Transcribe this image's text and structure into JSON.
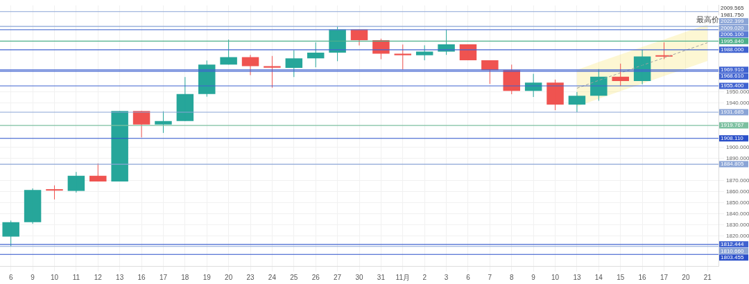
{
  "chart_data": {
    "type": "candlestick",
    "categories": [
      "6",
      "9",
      "10",
      "11",
      "12",
      "13",
      "16",
      "17",
      "18",
      "19",
      "20",
      "23",
      "24",
      "25",
      "26",
      "27",
      "30",
      "31",
      "11月",
      "2",
      "3",
      "6",
      "7",
      "8",
      "9",
      "10",
      "13",
      "14",
      "15",
      "16",
      "17",
      "20",
      "21"
    ],
    "ohlc": [
      [
        1819.5,
        1834,
        1810.7,
        1832.5
      ],
      [
        1832.5,
        1863,
        1831,
        1861.5
      ],
      [
        1862,
        1865.7,
        1853,
        1861
      ],
      [
        1860.7,
        1877.8,
        1859.2,
        1874.4
      ],
      [
        1874.4,
        1885.5,
        1869.2,
        1869.2
      ],
      [
        1869.2,
        1932.8,
        1869.2,
        1932.8
      ],
      [
        1932.8,
        1933,
        1909,
        1920.6
      ],
      [
        1920.6,
        1932.5,
        1913,
        1923.7
      ],
      [
        1923.7,
        1963.4,
        1923.7,
        1948.1
      ],
      [
        1948.1,
        1978.3,
        1945.7,
        1974.6
      ],
      [
        1974.6,
        1997.2,
        1974.6,
        1981.4
      ],
      [
        1981.4,
        1983.4,
        1965.1,
        1973.2
      ],
      [
        1973.2,
        1982.4,
        1953.8,
        1971.8
      ],
      [
        1971.6,
        1987.5,
        1963.4,
        1980.3
      ],
      [
        1980.3,
        1994.7,
        1972.2,
        1985.4
      ],
      [
        1985.4,
        2009,
        1977.7,
        2006.4
      ],
      [
        2006.4,
        2006.4,
        1991.9,
        1996.6
      ],
      [
        1996.6,
        1998,
        1979.5,
        1984.4
      ],
      [
        1984.4,
        1992.7,
        1970.2,
        1983
      ],
      [
        1983,
        1992,
        1978.5,
        1986.4
      ],
      [
        1986.4,
        2006.1,
        1983.4,
        1992.9
      ],
      [
        1992.9,
        1992.9,
        1978.5,
        1978.5
      ],
      [
        1978.5,
        1978.5,
        1957.2,
        1969.6
      ],
      [
        1969.6,
        1974.6,
        1947.9,
        1950.9
      ],
      [
        1950.9,
        1966.3,
        1945.4,
        1958.4
      ],
      [
        1958.4,
        1961.1,
        1933.5,
        1938.6
      ],
      [
        1938.6,
        1949.9,
        1931.7,
        1946.5
      ],
      [
        1946.5,
        1970.6,
        1942,
        1963.7
      ],
      [
        1963.7,
        1975.5,
        1955.4,
        1959.8
      ],
      [
        1959.8,
        1988,
        1956.8,
        1982
      ],
      [
        1983,
        1994.7,
        1979.5,
        1981.75
      ],
      null,
      null
    ],
    "colors": [
      "#26a69a",
      "#26a69a",
      "#ef5350",
      "#26a69a",
      "#ef5350",
      "#26a69a",
      "#ef5350",
      "#26a69a",
      "#26a69a",
      "#26a69a",
      "#26a69a",
      "#ef5350",
      "#ef5350",
      "#26a69a",
      "#26a69a",
      "#26a69a",
      "#ef5350",
      "#ef5350",
      "#ef5350",
      "#26a69a",
      "#26a69a",
      "#ef5350",
      "#ef5350",
      "#ef5350",
      "#26a69a",
      "#ef5350",
      "#26a69a",
      "#26a69a",
      "#ef5350",
      "#26a69a",
      "#ef5350",
      null,
      null
    ],
    "series": [
      {
        "type": "line",
        "color": "#a0a0a0",
        "line_style": "dashed",
        "values": [
          null,
          null,
          null,
          null,
          null,
          null,
          null,
          null,
          null,
          null,
          null,
          null,
          null,
          null,
          null,
          null,
          null,
          null,
          null,
          null,
          null,
          null,
          null,
          null,
          null,
          null,
          1953.3,
          1960.4,
          1967.2,
          1974,
          1980.8,
          1987.6,
          1994.4
        ],
        "lower": [
          null,
          null,
          null,
          null,
          null,
          null,
          null,
          null,
          null,
          null,
          null,
          null,
          null,
          null,
          null,
          null,
          null,
          null,
          null,
          null,
          null,
          null,
          null,
          null,
          null,
          null,
          1936.8,
          1943.9,
          1950.7,
          1957.5,
          1964.3,
          1971.1,
          1977.9
        ],
        "upper": [
          null,
          null,
          null,
          null,
          null,
          null,
          null,
          null,
          null,
          null,
          null,
          null,
          null,
          null,
          null,
          null,
          null,
          null,
          null,
          null,
          null,
          null,
          null,
          null,
          null,
          null,
          1969.8,
          1976.9,
          1983.7,
          1990.5,
          1997.3,
          2004.1,
          2010.9
        ]
      }
    ],
    "ylim": [
      1793,
      2028
    ],
    "yticks": [
      {
        "value": 1820,
        "label": "1820.000"
      },
      {
        "value": 1830,
        "label": "1830.000"
      },
      {
        "value": 1840,
        "label": "1840.000"
      },
      {
        "value": 1850,
        "label": "1850.000"
      },
      {
        "value": 1860,
        "label": "1860.000"
      },
      {
        "value": 1870,
        "label": "1870.000"
      },
      {
        "value": 1890,
        "label": "1890.000"
      },
      {
        "value": 1900,
        "label": "1900.000"
      },
      {
        "value": 1940,
        "label": "1940.000"
      },
      {
        "value": 1950,
        "label": "1950.000"
      }
    ],
    "grid": true,
    "ref_lines": [
      {
        "axis": "y",
        "value": 2022.399,
        "label": "2022.399",
        "color": "#8aa4d6"
      },
      {
        "axis": "y",
        "value": 2009.02,
        "label": "2009.020",
        "color": "#8aa4d6"
      },
      {
        "axis": "y",
        "value": 2006.1,
        "label": "2006.100",
        "color": "#5b7bd5"
      },
      {
        "axis": "y",
        "value": 1995.84,
        "label": "1995.840",
        "color": "#4caf8a"
      },
      {
        "axis": "y",
        "value": 1988,
        "label": "1988.000",
        "color": "#3f62d0"
      },
      {
        "axis": "y",
        "value": 1969.91,
        "label": "1969.910",
        "color": "#3f62d0"
      },
      {
        "axis": "y",
        "value": 1968.61,
        "label": "1968.610",
        "color": "#3f62d0"
      },
      {
        "axis": "y",
        "value": 1955.4,
        "label": "1955.400",
        "color": "#3f62d0"
      },
      {
        "axis": "y",
        "value": 1931.685,
        "label": "1931.685",
        "color": "#8aa4d6"
      },
      {
        "axis": "y",
        "value": 1919.767,
        "label": "1919.767",
        "color": "#7cc0a0"
      },
      {
        "axis": "y",
        "value": 1908.11,
        "label": "1908.110",
        "color": "#2a4fc9"
      },
      {
        "axis": "y",
        "value": 1884.805,
        "label": "1884.805",
        "color": "#8aa4d6"
      },
      {
        "axis": "y",
        "value": 1812.444,
        "label": "1812.444",
        "color": "#3f62d0"
      },
      {
        "axis": "y",
        "value": 1810.66,
        "label": "1810.660",
        "color": "#8aa4d6"
      },
      {
        "axis": "y",
        "value": 1803.455,
        "label": "1803.455",
        "color": "#2a4fc9"
      }
    ],
    "annotations": [
      {
        "text": "最高价",
        "x": "21",
        "y": 2009.565
      },
      "2009.565",
      "1981.750"
    ]
  }
}
